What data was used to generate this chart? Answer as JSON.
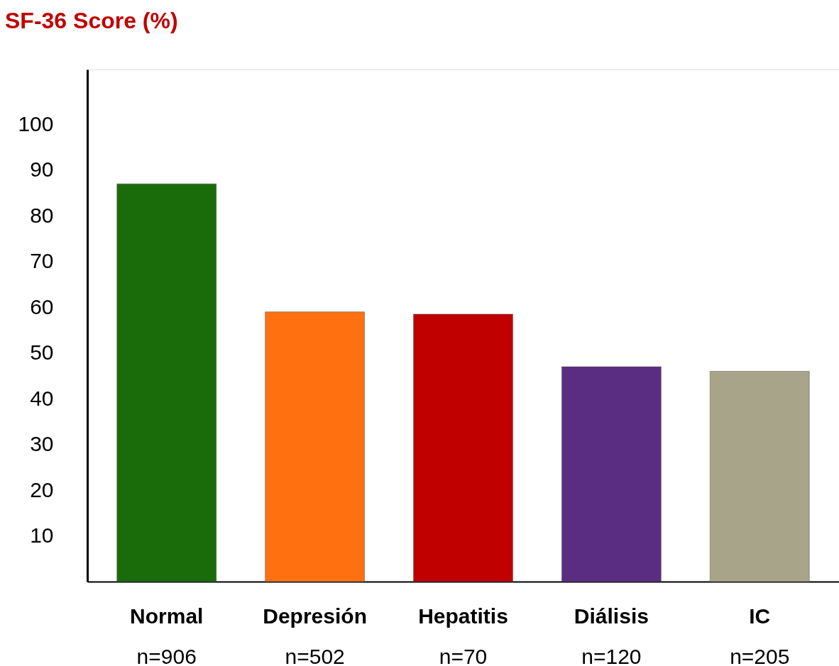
{
  "chart_data": {
    "type": "bar",
    "title": "SF-36 Score (%)",
    "categories": [
      "Normal\nn=906",
      "Depresión\nn=502",
      "Hepatitis\nn=70",
      "Diálisis\nn=120",
      "IC\nn=205"
    ],
    "values": [
      87,
      59,
      58.5,
      47,
      46
    ],
    "colors": [
      "#1a6b0a",
      "#ff7010",
      "#c00000",
      "#5a2d82",
      "#a8a48a"
    ],
    "ylim": [
      0,
      112
    ],
    "yticks": [
      10,
      20,
      30,
      40,
      50,
      60,
      70,
      80,
      90,
      100
    ],
    "grid": false
  }
}
